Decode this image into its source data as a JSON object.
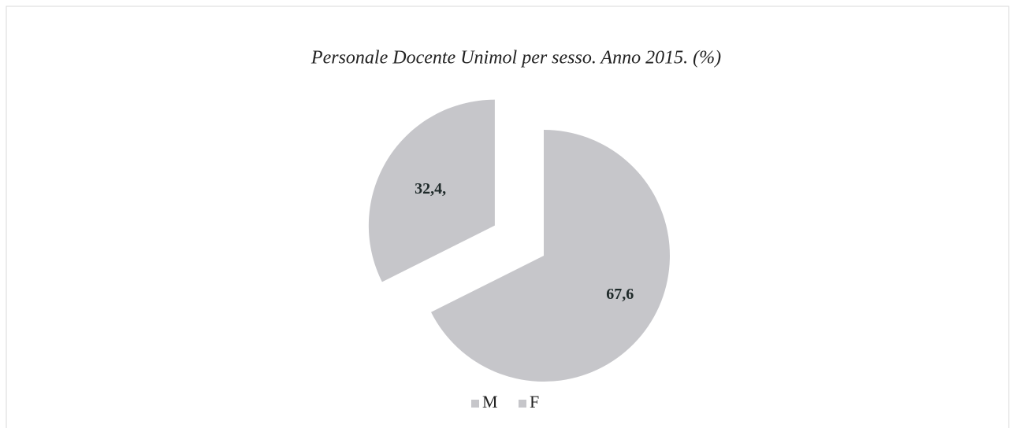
{
  "chart_data": {
    "type": "pie",
    "title": "Personale Docente Unimol per sesso. Anno 2015. (%)",
    "categories": [
      "M",
      "F"
    ],
    "values": [
      67.6,
      32.4
    ],
    "value_labels": [
      "67,6",
      "32,4,"
    ],
    "colors": [
      "#c6c6ca",
      "#c6c6ca"
    ],
    "exploded": [
      false,
      true
    ],
    "legend": "bottom"
  }
}
